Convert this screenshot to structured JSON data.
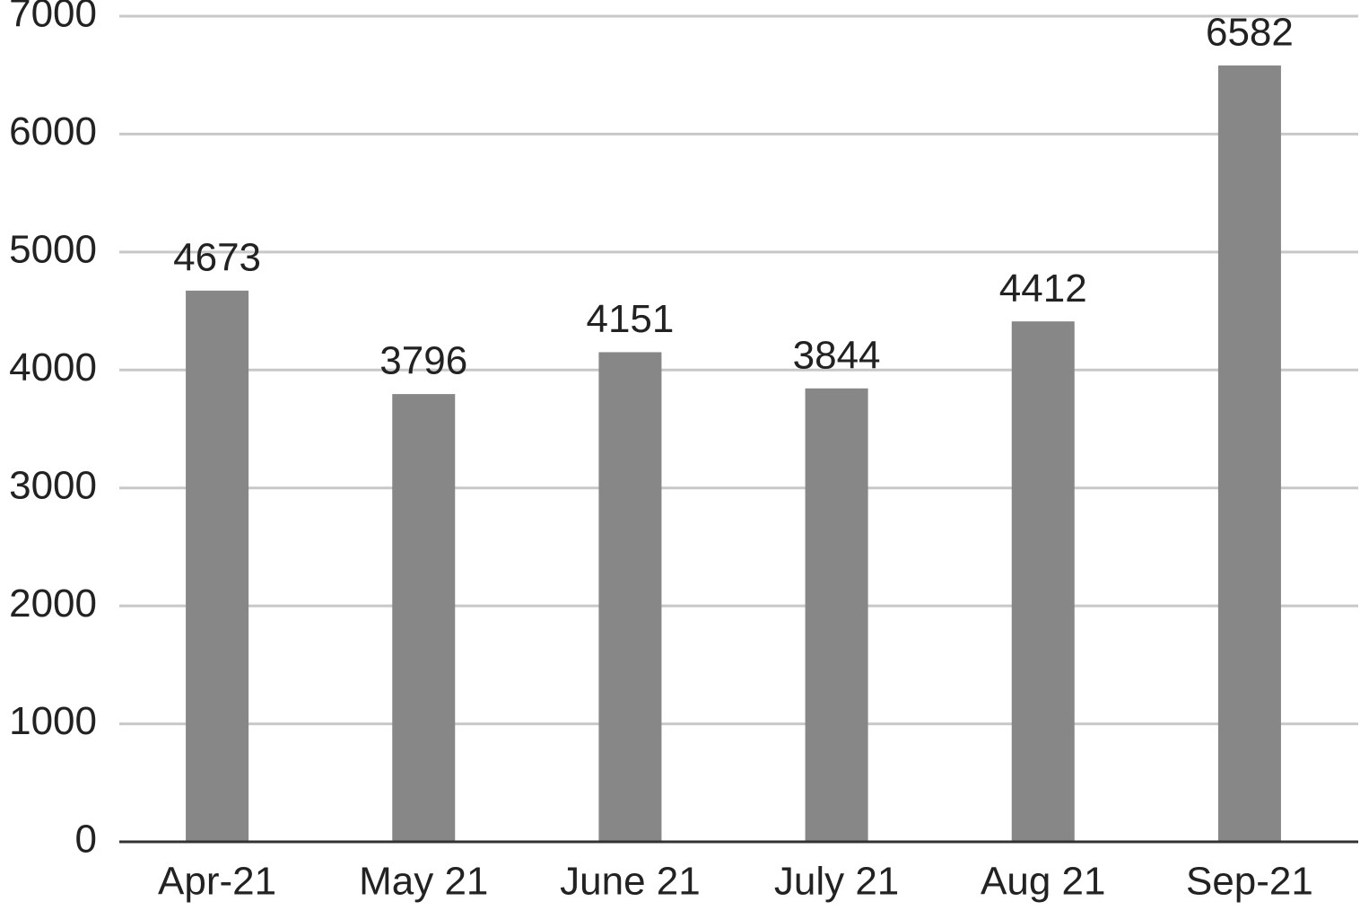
{
  "chart_data": {
    "type": "bar",
    "categories": [
      "Apr-21",
      "May 21",
      "June 21",
      "July 21",
      "Aug 21",
      "Sep-21"
    ],
    "values": [
      4673,
      3796,
      4151,
      3844,
      4412,
      6582
    ],
    "color": "#878787",
    "ylim": [
      0,
      7000
    ],
    "yticks": [
      0,
      1000,
      2000,
      3000,
      4000,
      5000,
      6000,
      7000
    ],
    "grid": true
  }
}
